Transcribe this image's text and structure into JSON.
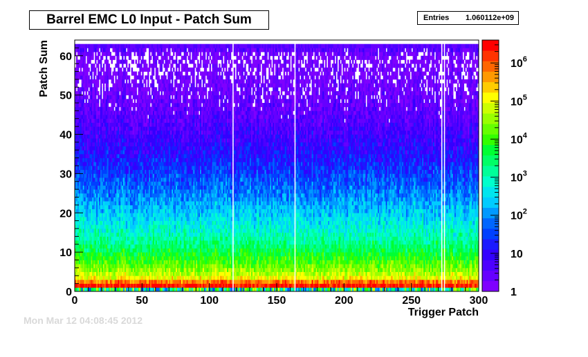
{
  "chart_data": {
    "type": "heatmap",
    "title": "Barrel EMC L0 Input - Patch Sum",
    "stats": {
      "label": "Entries",
      "value": "1.060112e+09"
    },
    "xlabel": "Trigger Patch",
    "ylabel": "Patch Sum",
    "xlim": [
      0,
      300
    ],
    "ylim": [
      0,
      64
    ],
    "x_ticks": [
      0,
      50,
      100,
      150,
      200,
      250,
      300
    ],
    "y_ticks": [
      0,
      10,
      20,
      30,
      40,
      50,
      60
    ],
    "z_scale": "log",
    "zlim": [
      1,
      4000000
    ],
    "z_ticks": [
      {
        "value": 1,
        "label": "1"
      },
      {
        "value": 10,
        "label": "10"
      },
      {
        "value": 100,
        "label": "10",
        "exp": "2"
      },
      {
        "value": 1000,
        "label": "10",
        "exp": "3"
      },
      {
        "value": 10000,
        "label": "10",
        "exp": "4"
      },
      {
        "value": 100000,
        "label": "10",
        "exp": "5"
      },
      {
        "value": 1000000,
        "label": "10",
        "exp": "6"
      }
    ],
    "palette": [
      "#7f00ff",
      "#6600ff",
      "#4d00ff",
      "#3300ff",
      "#1a1aff",
      "#0040ff",
      "#0066ff",
      "#0099ff",
      "#00ccff",
      "#00e5ee",
      "#00ffcc",
      "#00ff99",
      "#00ff66",
      "#00ff33",
      "#33ff00",
      "#66ff00",
      "#99ff00",
      "#ccff00",
      "#ffff00",
      "#ffcc00",
      "#ff9900",
      "#ff6600",
      "#ff3300",
      "#ff0000"
    ],
    "empty_columns": [
      117,
      163,
      272,
      274
    ],
    "profile_description_values": {
      "patch_sum_bins": [
        0,
        1,
        2,
        3,
        5,
        8,
        12,
        16,
        20,
        25,
        30,
        35,
        40,
        45,
        50,
        55,
        60,
        62
      ],
      "typical_log10_counts": [
        3.2,
        6.3,
        6.5,
        5.2,
        4.6,
        4.0,
        3.3,
        2.8,
        2.4,
        1.9,
        1.5,
        1.1,
        0.8,
        0.5,
        0.3,
        0.15,
        0.05,
        0.6
      ]
    }
  },
  "footer": {
    "timestamp": "Mon Mar 12 04:08:45 2012"
  }
}
